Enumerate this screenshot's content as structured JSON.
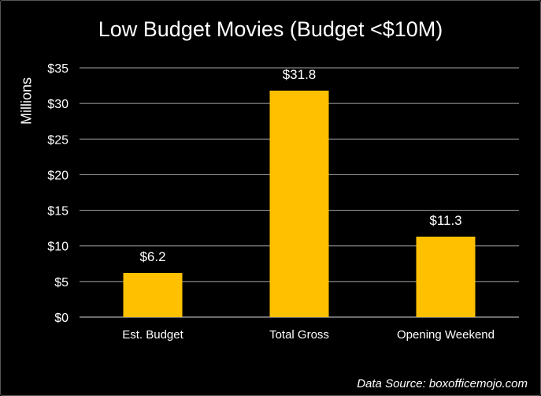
{
  "chart_data": {
    "type": "bar",
    "title": "Low Budget Movies (Budget <$10M)",
    "ylabel": "Millions",
    "xlabel": "",
    "categories": [
      "Est. Budget",
      "Total Gross",
      "Opening Weekend"
    ],
    "values": [
      6.2,
      31.8,
      11.3
    ],
    "data_labels": [
      "$6.2",
      "$31.8",
      "$11.3"
    ],
    "ylim": [
      0,
      35
    ],
    "yticks": [
      0,
      5,
      10,
      15,
      20,
      25,
      30,
      35
    ],
    "ytick_labels": [
      "$0",
      "$5",
      "$10",
      "$15",
      "$20",
      "$25",
      "$30",
      "$35"
    ],
    "grid": true,
    "bar_color": "#FFC000",
    "annotation": "Data Source: boxofficemojo.com"
  },
  "colors": {
    "background": "#000000",
    "text": "#ffffff",
    "grid": "#a6a6a6"
  }
}
